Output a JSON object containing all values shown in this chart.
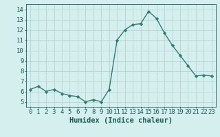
{
  "x": [
    0,
    1,
    2,
    3,
    4,
    5,
    6,
    7,
    8,
    9,
    10,
    11,
    12,
    13,
    14,
    15,
    16,
    17,
    18,
    19,
    20,
    21,
    22,
    23
  ],
  "y": [
    6.2,
    6.5,
    6.0,
    6.2,
    5.8,
    5.6,
    5.5,
    5.0,
    5.2,
    5.0,
    6.2,
    11.0,
    12.0,
    12.5,
    12.6,
    13.8,
    13.1,
    11.7,
    10.5,
    9.5,
    8.5,
    7.5,
    7.6,
    7.5
  ],
  "xlabel": "Humidex (Indice chaleur)",
  "ylim": [
    4.5,
    14.5
  ],
  "xlim": [
    -0.5,
    23.5
  ],
  "yticks": [
    5,
    6,
    7,
    8,
    9,
    10,
    11,
    12,
    13,
    14
  ],
  "xticks": [
    0,
    1,
    2,
    3,
    4,
    5,
    6,
    7,
    8,
    9,
    10,
    11,
    12,
    13,
    14,
    15,
    16,
    17,
    18,
    19,
    20,
    21,
    22,
    23
  ],
  "line_color": "#2e7d6e",
  "marker": "D",
  "marker_size": 2.2,
  "bg_color": "#d4efed",
  "grid_color": "#b8d8d5",
  "title_color": "#1a5c52",
  "tick_color": "#1a5c52",
  "xlabel_fontsize": 7.5,
  "tick_fontsize": 6.5,
  "line_width": 1.0
}
